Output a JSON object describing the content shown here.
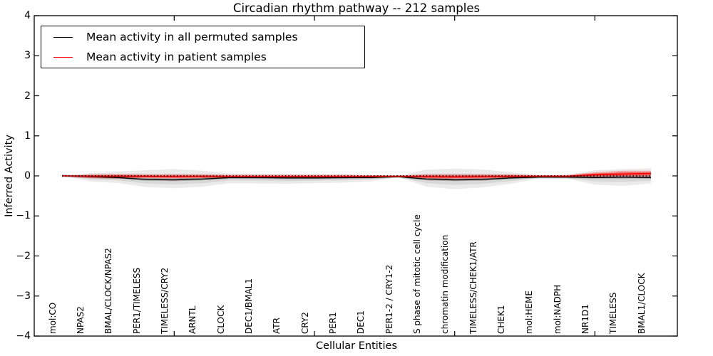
{
  "chart_data": {
    "type": "line",
    "title": "Circadian rhythm pathway -- 212 samples",
    "xlabel": "Cellular Entities",
    "ylabel": "Inferred Activity",
    "ylim": [
      -4,
      4
    ],
    "yticks": [
      -4,
      -3,
      -2,
      -1,
      0,
      1,
      2,
      3,
      4
    ],
    "xtick_category_indices": [
      4,
      9,
      14,
      19
    ],
    "grid": false,
    "legend_position": "upper-left",
    "categories": [
      "mol:CO",
      "NPAS2",
      "BMAL/CLOCK/NPAS2",
      "PER1/TIMELESS",
      "TIMELESS/CRY2",
      "ARNTL",
      "CLOCK",
      "DEC1/BMAL1",
      "ATR",
      "CRY2",
      "PER1",
      "DEC1",
      "PER1-2 / CRY1-2",
      "S phase of mitotic cell cycle",
      "chromatin modification",
      "TIMELESS/CHEK1/ATR",
      "CHEK1",
      "mol:HEME",
      "mol:NADPH",
      "NR1D1",
      "TIMELESS",
      "BMAL1/CLOCK"
    ],
    "series": [
      {
        "name": "Mean activity in all permuted samples",
        "color": "#000000",
        "style": "solid",
        "in_legend": true,
        "values": [
          0,
          -0.02,
          -0.04,
          -0.09,
          -0.1,
          -0.08,
          -0.04,
          -0.045,
          -0.05,
          -0.05,
          -0.045,
          -0.04,
          -0.02,
          -0.08,
          -0.1,
          -0.09,
          -0.05,
          -0.03,
          -0.03,
          -0.04,
          -0.035,
          -0.04
        ]
      },
      {
        "name": "Mean activity in patient samples",
        "color": "#ff0000",
        "style": "solid",
        "in_legend": true,
        "values": [
          0,
          -0.01,
          -0.01,
          -0.015,
          -0.02,
          -0.02,
          -0.02,
          -0.02,
          -0.02,
          -0.02,
          -0.02,
          -0.015,
          -0.01,
          -0.02,
          -0.025,
          -0.02,
          -0.015,
          -0.01,
          -0.01,
          0.03,
          0.045,
          0.06
        ]
      },
      {
        "name": "zero-reference",
        "color": "#000000",
        "style": "dotted",
        "in_legend": false,
        "values": [
          0,
          0,
          0,
          0,
          0,
          0,
          0,
          0,
          0,
          0,
          0,
          0,
          0,
          0,
          0,
          0,
          0,
          0,
          0,
          0,
          0,
          0
        ]
      }
    ],
    "bands": [
      {
        "name": "permuted-samples-range",
        "color": "#000000",
        "opacity": 0.08,
        "inner_factor": 0.55,
        "inner_opacity": 0.08,
        "mean_series": 0,
        "hi": [
          0,
          0.07,
          0.11,
          0.14,
          0.17,
          0.13,
          0.06,
          0.05,
          0.05,
          0.04,
          0.04,
          0.02,
          0.005,
          0.16,
          0.18,
          0.16,
          0.09,
          0.02,
          0.03,
          0.14,
          0.17,
          0.19
        ],
        "lo": [
          0,
          -0.14,
          -0.18,
          -0.28,
          -0.31,
          -0.27,
          -0.18,
          -0.19,
          -0.2,
          -0.18,
          -0.17,
          -0.14,
          -0.03,
          -0.27,
          -0.33,
          -0.29,
          -0.2,
          -0.06,
          -0.07,
          -0.22,
          -0.25,
          -0.19
        ]
      },
      {
        "name": "patient-samples-range",
        "color": "#ff0000",
        "opacity": 0.28,
        "inner_factor": 0.5,
        "inner_opacity": 0.4,
        "mean_series": 1,
        "hi": [
          0,
          0.04,
          0.05,
          0.04,
          0.04,
          0.04,
          0.03,
          0.03,
          0.03,
          0.03,
          0.03,
          0.02,
          0.01,
          0.04,
          0.04,
          0.04,
          0.04,
          0.02,
          0.02,
          0.09,
          0.13,
          0.13
        ],
        "lo": [
          0,
          -0.06,
          -0.07,
          -0.06,
          -0.07,
          -0.06,
          -0.05,
          -0.05,
          -0.05,
          -0.05,
          -0.05,
          -0.04,
          -0.02,
          -0.08,
          -0.08,
          -0.08,
          -0.05,
          -0.03,
          -0.03,
          -0.05,
          -0.04,
          -0.03
        ]
      },
      {
        "name": "permuted-mean-spread",
        "color": "#000000",
        "opacity": 0.25,
        "from_series": 0,
        "pad": 0.03
      }
    ]
  }
}
